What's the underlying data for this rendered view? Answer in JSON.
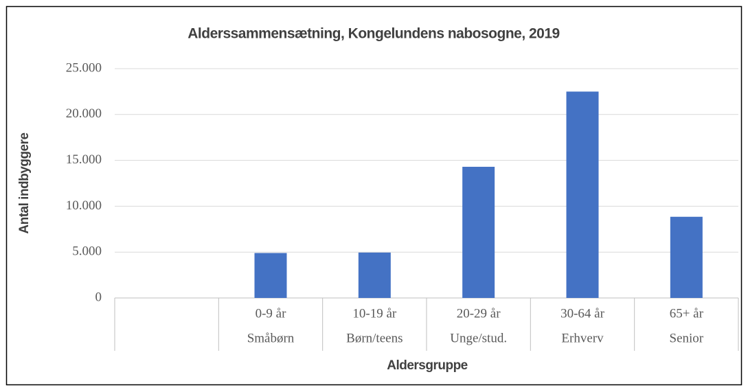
{
  "chart_data": {
    "type": "bar",
    "title": "Alderssammensætning, Kongelundens nabosogne, 2019",
    "x_label": "Aldersgruppe",
    "y_label": "Antal indbyggere",
    "categories": [
      null,
      "0-9 år",
      "10-19 år",
      "20-29 år",
      "30-64 år",
      "65+ år"
    ],
    "category_groups": [
      null,
      "Småbørn",
      "Børn/teens",
      "Unge/stud.",
      "Erhverv",
      "Senior"
    ],
    "values": [
      null,
      4900,
      4950,
      14300,
      22500,
      8850
    ],
    "color": "#4472c4",
    "ylim": [
      0,
      25000
    ],
    "yticks": [
      0,
      {
        "value": 5000,
        "label": "5.000"
      },
      {
        "value": 10000,
        "label": "10.000"
      },
      {
        "value": 15000,
        "label": "15.000"
      },
      {
        "value": 20000,
        "label": "20.000"
      },
      {
        "value": 25000,
        "label": "25.000"
      }
    ],
    "grid": true
  }
}
